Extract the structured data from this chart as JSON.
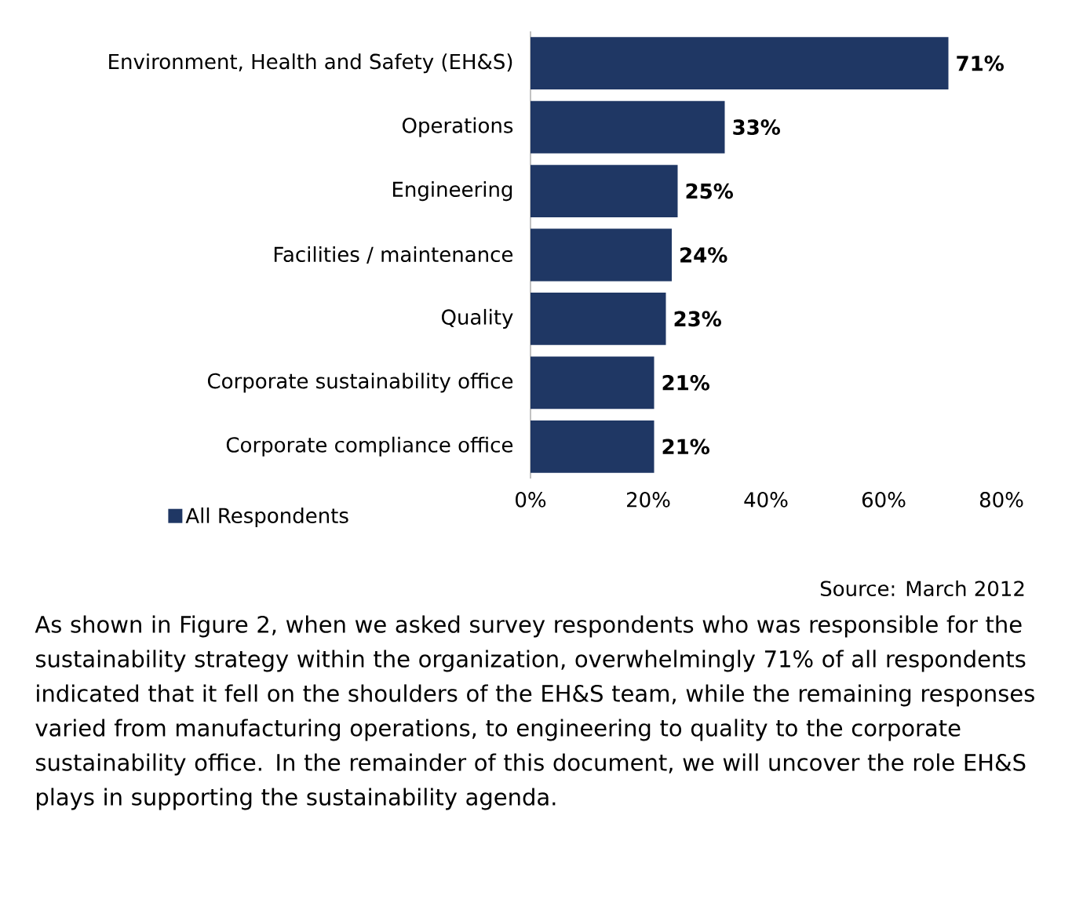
{
  "chart_data": {
    "type": "bar",
    "orientation": "horizontal",
    "categories": [
      "Environment, Health and Safety (EH&S)",
      "Operations",
      "Engineering",
      "Facilities / maintenance",
      "Quality",
      "Corporate sustainability office",
      "Corporate compliance office"
    ],
    "series": [
      {
        "name": "All Respondents",
        "color": "#1f3764",
        "values": [
          71,
          33,
          25,
          24,
          23,
          21,
          21
        ],
        "value_labels": [
          "71%",
          "33%",
          "25%",
          "24%",
          "23%",
          "21%",
          "21%"
        ]
      }
    ],
    "xlim": [
      0,
      80
    ],
    "xticks": [
      {
        "value": 0,
        "label": "0%"
      },
      {
        "value": 20,
        "label": "20%"
      },
      {
        "value": 40,
        "label": "40%"
      },
      {
        "value": 60,
        "label": "60%"
      },
      {
        "value": 80,
        "label": "80%"
      }
    ],
    "legend": "bottom left",
    "grid": false,
    "annotations": [
      "Source: March 2012",
      "As shown in Figure 2, when we asked survey respondents who was responsible for the sustainability strategy within the organization, overwhelmingly 71% of all respondents indicated that it fell on the shoulders of the EH&S team, while the remaining responses varied from manufacturing operations, to engineering to quality to the corporate sustainability office. In the remainder of this document, we will uncover the role EH&S plays in supporting the sustainability agenda."
    ]
  }
}
